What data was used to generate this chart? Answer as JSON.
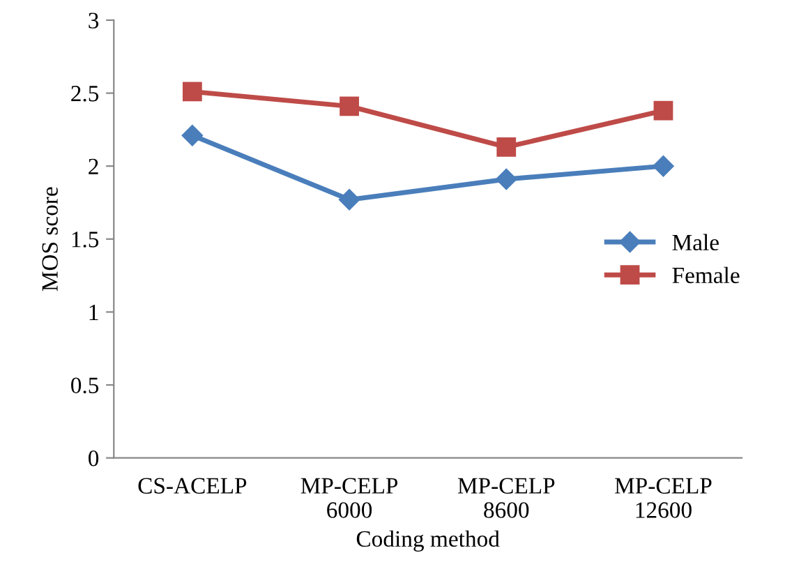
{
  "chart_data": {
    "type": "line",
    "xlabel": "Coding method",
    "ylabel": "MOS score",
    "categories": [
      "CS-ACELP",
      "MP-CELP\n6000",
      "MP-CELP\n8600",
      "MP-CELP\n12600"
    ],
    "series": [
      {
        "name": "Male",
        "color": "#4a7ebb",
        "marker": "diamond",
        "values": [
          2.21,
          1.77,
          1.91,
          2.0
        ]
      },
      {
        "name": "Female",
        "color": "#be4b48",
        "marker": "square",
        "values": [
          2.51,
          2.41,
          2.13,
          2.38
        ]
      }
    ],
    "ylim": [
      0,
      3
    ],
    "yticks": [
      0,
      0.5,
      1,
      1.5,
      2,
      2.5,
      3
    ],
    "grid": false,
    "legend": "right",
    "line_style": "solid"
  }
}
